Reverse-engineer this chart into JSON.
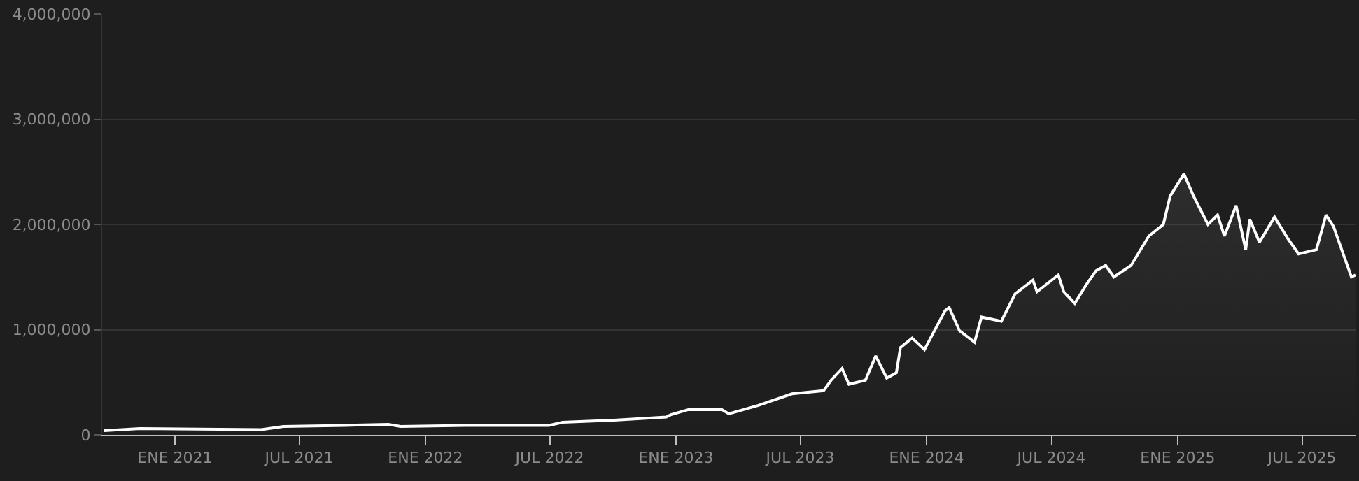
{
  "chart_data": {
    "type": "area",
    "x": [
      "2020-09-20",
      "2020-11-11",
      "2021-05-07",
      "2021-06-08",
      "2021-09-06",
      "2021-11-08",
      "2021-11-26",
      "2022-02-28",
      "2022-06-30",
      "2022-07-20",
      "2022-10-03",
      "2022-12-18",
      "2022-12-24",
      "2023-01-19",
      "2023-03-09",
      "2023-03-19",
      "2023-05-01",
      "2023-06-19",
      "2023-08-04",
      "2023-08-15",
      "2023-08-31",
      "2023-09-10",
      "2023-10-04",
      "2023-10-19",
      "2023-11-04",
      "2023-11-18",
      "2023-11-24",
      "2023-12-11",
      "2023-12-29",
      "2024-01-28",
      "2024-02-03",
      "2024-02-18",
      "2024-03-11",
      "2024-03-21",
      "2024-04-19",
      "2024-05-09",
      "2024-06-04",
      "2024-06-10",
      "2024-07-11",
      "2024-07-19",
      "2024-08-04",
      "2024-08-21",
      "2024-09-04",
      "2024-09-18",
      "2024-09-30",
      "2024-10-25",
      "2024-11-20",
      "2024-12-11",
      "2024-12-21",
      "2025-01-10",
      "2025-01-24",
      "2025-02-14",
      "2025-02-28",
      "2025-03-10",
      "2025-03-27",
      "2025-04-10",
      "2025-04-16",
      "2025-04-30",
      "2025-05-22",
      "2025-06-10",
      "2025-06-26",
      "2025-07-22",
      "2025-08-05",
      "2025-08-16",
      "2025-08-30",
      "2025-09-11",
      "2025-09-17"
    ],
    "series": [
      {
        "color": "#ffffff",
        "values": [
          40000,
          60000,
          50000,
          80000,
          90000,
          100000,
          80000,
          90000,
          90000,
          120000,
          140000,
          170000,
          190000,
          240000,
          240000,
          200000,
          280000,
          390000,
          420000,
          520000,
          630000,
          480000,
          520000,
          750000,
          540000,
          590000,
          830000,
          920000,
          810000,
          1180000,
          1210000,
          990000,
          880000,
          1120000,
          1080000,
          1340000,
          1470000,
          1360000,
          1520000,
          1360000,
          1250000,
          1430000,
          1560000,
          1610000,
          1500000,
          1610000,
          1890000,
          2000000,
          2270000,
          2480000,
          2270000,
          2000000,
          2090000,
          1890000,
          2180000,
          1760000,
          2050000,
          1830000,
          2070000,
          1870000,
          1720000,
          1760000,
          2090000,
          1980000,
          1720000,
          1500000,
          1520000
        ]
      }
    ],
    "xlim": [
      "2020-09-17",
      "2025-09-18"
    ],
    "xticks": [
      {
        "value": "2021-01-01",
        "label": "ENE 2021"
      },
      {
        "value": "2021-07-01",
        "label": "JUL 2021"
      },
      {
        "value": "2022-01-01",
        "label": "ENE 2022"
      },
      {
        "value": "2022-07-01",
        "label": "JUL 2022"
      },
      {
        "value": "2023-01-01",
        "label": "ENE 2023"
      },
      {
        "value": "2023-07-01",
        "label": "JUL 2023"
      },
      {
        "value": "2024-01-01",
        "label": "ENE 2024"
      },
      {
        "value": "2024-07-01",
        "label": "JUL 2024"
      },
      {
        "value": "2025-01-01",
        "label": "ENE 2025"
      },
      {
        "value": "2025-07-01",
        "label": "JUL 2025"
      }
    ],
    "ylim": [
      0,
      4000000
    ],
    "yticks": [
      {
        "value": 0,
        "label": "0"
      },
      {
        "value": 1000000,
        "label": "1,000,000"
      },
      {
        "value": 2000000,
        "label": "2,000,000"
      },
      {
        "value": 3000000,
        "label": "3,000,000"
      },
      {
        "value": 4000000,
        "label": "4,000,000"
      }
    ],
    "grid": "y"
  }
}
